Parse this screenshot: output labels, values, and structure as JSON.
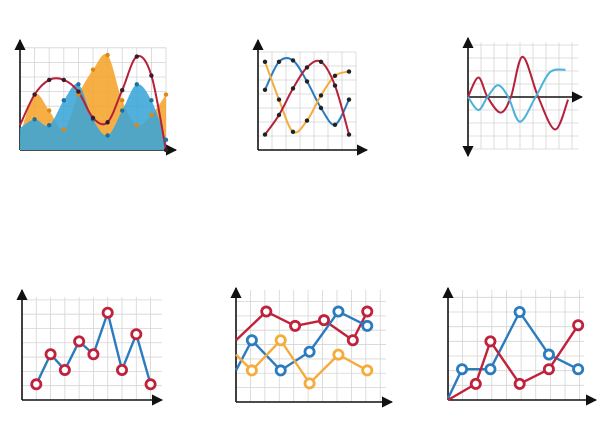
{
  "chart_data": [
    {
      "type": "area",
      "smooth": true,
      "grid": true,
      "markers": "dot",
      "xlim": [
        0,
        10
      ],
      "ylim": [
        0,
        7
      ],
      "x": [
        0,
        1,
        2,
        3,
        4,
        5,
        6,
        7,
        8,
        9,
        10
      ],
      "series": [
        {
          "color": "#f5a42a",
          "marker_color": "#e0870f",
          "values": [
            1.0,
            3.8,
            2.7,
            1.4,
            3.8,
            5.5,
            6.5,
            3.4,
            1.7,
            2.4,
            3.8
          ]
        },
        {
          "color": "#3aa5d8",
          "marker_color": "#1f6fa0",
          "values": [
            1.5,
            2.1,
            1.7,
            3.4,
            4.5,
            2.1,
            1.0,
            2.7,
            4.5,
            3.4,
            0.7
          ]
        },
        {
          "type": "line",
          "color": "#b5203a",
          "marker_color": "#3a1a2e",
          "values": [
            1.7,
            3.8,
            4.8,
            4.8,
            4.0,
            2.2,
            1.9,
            4.1,
            6.4,
            5.1,
            0
          ]
        }
      ]
    },
    {
      "type": "line",
      "smooth": true,
      "grid": true,
      "markers": "dot",
      "marker_color": "#222222",
      "xlim": [
        0,
        7
      ],
      "ylim": [
        0,
        7
      ],
      "x": [
        0.5,
        1.5,
        2.5,
        3.5,
        4.5,
        5.5,
        6.5
      ],
      "series": [
        {
          "color": "#2b7bbf",
          "values": [
            4.3,
            6.3,
            6.4,
            4.9,
            3.0,
            1.8,
            3.6
          ]
        },
        {
          "color": "#f5ac3c",
          "values": [
            6.3,
            3.6,
            1.3,
            2.1,
            3.9,
            5.3,
            5.6
          ]
        },
        {
          "color": "#b5203a",
          "values": [
            1.1,
            2.5,
            4.4,
            5.9,
            6.3,
            4.6,
            1.1
          ]
        }
      ]
    },
    {
      "type": "line",
      "smooth": true,
      "grid": true,
      "xlim": [
        0,
        8.5
      ],
      "ylim": [
        -4,
        4.2
      ],
      "series": [
        {
          "color": "#b5203a",
          "x": [
            0,
            0.8,
            1.5,
            2.5,
            3.3,
            4.2,
            5.4,
            6.7,
            7.7
          ],
          "values": [
            0,
            1.5,
            0,
            -1.2,
            0,
            3.1,
            0,
            -2.5,
            -0.2
          ]
        },
        {
          "color": "#4ab3d8",
          "x": [
            0,
            0.8,
            1.5,
            2.3,
            3.1,
            4,
            5.2,
            6.3,
            7.5
          ],
          "values": [
            0,
            -1,
            0,
            0.9,
            0,
            -1.9,
            0,
            1.9,
            2.1
          ]
        }
      ]
    },
    {
      "type": "line",
      "grid": true,
      "markers": "ring",
      "xlim": [
        0,
        9.8
      ],
      "ylim": [
        0,
        7.2
      ],
      "series": [
        {
          "color": "#2b7bbf",
          "marker_color": "#c0223b",
          "x": [
            1,
            2,
            3,
            4,
            5,
            6,
            7,
            8,
            9
          ],
          "values": [
            1.1,
            3.2,
            2.1,
            4.1,
            3.2,
            6.1,
            2.1,
            4.6,
            1.1
          ]
        }
      ]
    },
    {
      "type": "line",
      "grid": true,
      "markers": "ring",
      "xlim": [
        0,
        10.4
      ],
      "ylim": [
        0,
        7.8
      ],
      "series": [
        {
          "color": "#c0223b",
          "x": [
            0,
            2.1,
            4.1,
            6.1,
            8.1,
            9.1
          ],
          "values": [
            4.3,
            6.3,
            5.3,
            5.7,
            4.3,
            6.3
          ]
        },
        {
          "color": "#2b7bbf",
          "x": [
            0,
            1.1,
            3.1,
            5.1,
            7.1,
            9.1
          ],
          "values": [
            2.2,
            4.3,
            2.2,
            3.5,
            6.3,
            5.3
          ]
        },
        {
          "color": "#f5ac3c",
          "x": [
            0,
            1.1,
            3.1,
            5.1,
            7.1,
            9.1
          ],
          "values": [
            3.3,
            2.2,
            4.3,
            1.3,
            3.3,
            2.2
          ]
        }
      ]
    },
    {
      "type": "line",
      "grid": true,
      "markers": "ring",
      "xlim": [
        0,
        9.3
      ],
      "ylim": [
        0,
        7.5
      ],
      "series": [
        {
          "color": "#2b7bbf",
          "x": [
            0,
            0.96,
            2.9,
            4.9,
            6.9,
            8.9
          ],
          "values": [
            0.1,
            2.1,
            2.1,
            6.0,
            3.1,
            2.1
          ]
        },
        {
          "color": "#c0223b",
          "x": [
            0,
            1.9,
            2.9,
            4.9,
            6.9,
            8.9
          ],
          "values": [
            0,
            1.1,
            4.0,
            1.1,
            2.1,
            5.1
          ]
        }
      ]
    }
  ]
}
